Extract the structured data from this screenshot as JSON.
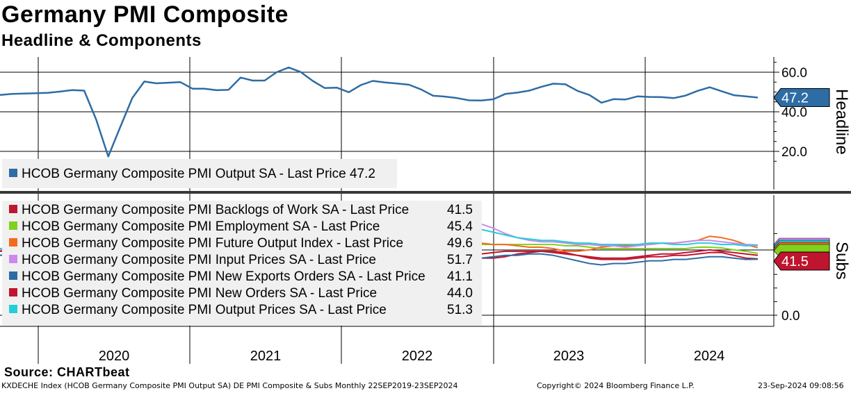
{
  "header": {
    "title": "Germany PMI Composite",
    "subtitle": "Headline & Components"
  },
  "footer": {
    "source": "Source: CHARTbeat",
    "ticker_line": "KXDECHE Index (HCOB Germany Composite PMI Output SA) DE PMI Composite & Subs  Monthly 22SEP2019-23SEP2024",
    "copyright": "Copyright© 2024 Bloomberg Finance L.P.",
    "timestamp": "23-Sep-2024 09:08:56"
  },
  "colors": {
    "headline": "#2e6ca4",
    "backlogs": "#c0152f",
    "employment": "#7fd11b",
    "future_output": "#f36c1c",
    "input_prices": "#cc88ee",
    "new_exports": "#2e6ca4",
    "new_orders": "#c0152f",
    "output_prices": "#22cfd8"
  },
  "chart_data": [
    {
      "type": "line",
      "panel": "top",
      "axis_title": "Headline",
      "x_labels": [
        "2020",
        "2021",
        "2022",
        "2023",
        "2024"
      ],
      "y_ticks": [
        "60.0",
        "40.0",
        "20.0"
      ],
      "ylim": [
        10,
        67
      ],
      "last_value_label": "47.2",
      "legend": [
        {
          "label": "HCOB Germany Composite PMI Output SA - Last Price 47.2",
          "color_key": "headline"
        }
      ],
      "series": [
        {
          "name": "HCOB Germany Composite PMI Output SA",
          "color_key": "headline",
          "values": [
            48.5,
            49.0,
            49.2,
            49.4,
            49.6,
            50.2,
            51.0,
            50.7,
            36.0,
            17.4,
            32.3,
            47.0,
            55.3,
            54.4,
            54.7,
            55.0,
            51.7,
            51.7,
            50.9,
            51.1,
            57.3,
            55.8,
            55.8,
            60.0,
            62.4,
            60.1,
            55.6,
            52.0,
            52.2,
            49.9,
            53.5,
            55.6,
            54.8,
            54.3,
            53.7,
            51.3,
            48.1,
            47.7,
            46.9,
            45.8,
            45.7,
            46.3,
            49.0,
            49.7,
            50.7,
            52.6,
            54.2,
            53.9,
            50.6,
            48.5,
            44.6,
            46.4,
            46.2,
            47.8,
            47.5,
            47.4,
            46.9,
            48.2,
            50.6,
            52.4,
            50.4,
            48.4,
            47.8,
            47.2
          ]
        }
      ]
    },
    {
      "type": "line",
      "panel": "bottom",
      "axis_title": "Subs",
      "x_labels": [
        "2020",
        "2021",
        "2022",
        "2023",
        "2024"
      ],
      "y_ticks": [
        "0.0"
      ],
      "ylim": [
        -5,
        80
      ],
      "last_value_label": "41.5",
      "legend": [
        {
          "label": "HCOB Germany Composite PMI Backlogs of Work SA - Last Price",
          "value": "41.5",
          "color_key": "backlogs"
        },
        {
          "label": "HCOB Germany Composite PMI Employment SA - Last Price",
          "value": "45.4",
          "color_key": "employment"
        },
        {
          "label": "HCOB Germany Composite PMI Future Output Index - Last Price",
          "value": "49.6",
          "color_key": "future_output"
        },
        {
          "label": "HCOB Germany Composite PMI Input Prices SA - Last Price",
          "value": "51.7",
          "color_key": "input_prices"
        },
        {
          "label": "HCOB Germany Composite PMI New Exports Orders SA - Last Price",
          "value": "41.1",
          "color_key": "new_exports"
        },
        {
          "label": "HCOB Germany Composite PMI New Orders SA - Last Price",
          "value": "44.0",
          "color_key": "new_orders"
        },
        {
          "label": "HCOB Germany Composite PMI Output Prices SA - Last Price",
          "value": "51.3",
          "color_key": "output_prices"
        }
      ],
      "series": [
        {
          "name": "HCOB Germany Composite PMI Backlogs of Work SA",
          "color_key": "backlogs",
          "values": [
            44,
            45,
            45,
            46,
            46,
            45,
            43,
            38,
            30,
            22,
            30,
            38,
            45,
            44,
            45,
            45,
            44,
            45,
            46,
            47,
            52,
            54,
            56,
            58,
            60,
            58,
            56,
            54,
            52,
            50,
            48,
            47,
            46,
            46,
            45,
            45,
            44,
            43,
            42,
            42,
            42,
            42,
            43,
            45,
            46,
            47,
            47,
            46,
            44,
            42,
            41,
            41,
            41,
            42,
            43,
            43,
            44,
            44,
            45,
            46,
            46,
            44,
            42,
            41.5
          ]
        },
        {
          "name": "HCOB Germany Composite PMI Employment SA",
          "color_key": "employment",
          "values": [
            49,
            49.5,
            49.7,
            50,
            50.3,
            49.5,
            49,
            47,
            40,
            35,
            38,
            43,
            46,
            47,
            47,
            47.5,
            48,
            48.5,
            49,
            49.5,
            51,
            52,
            53,
            54,
            55,
            54,
            53,
            52,
            51,
            51,
            52,
            53,
            53,
            53,
            52,
            52,
            51,
            51,
            51,
            51,
            52,
            52,
            52,
            52,
            52,
            52,
            52,
            51,
            51,
            50,
            49,
            49,
            49,
            49,
            49,
            49,
            49,
            49,
            50,
            50,
            49.5,
            48,
            47,
            45.4
          ]
        },
        {
          "name": "HCOB Germany Composite PMI Future Output Index",
          "color_key": "future_output",
          "values": [
            47,
            47,
            48,
            47,
            47,
            45,
            42,
            36,
            26,
            24,
            34,
            44,
            50,
            54,
            55,
            55,
            52,
            54,
            58,
            60,
            62,
            63,
            62,
            60,
            58,
            55,
            52,
            48,
            46,
            48,
            52,
            51,
            50,
            49,
            47,
            45,
            43,
            43,
            47,
            52,
            53,
            52,
            52,
            51,
            50,
            50,
            49,
            47,
            47,
            48,
            50,
            51,
            51,
            52,
            52,
            53,
            53,
            54,
            55,
            58,
            57,
            55,
            52,
            49.6
          ]
        },
        {
          "name": "HCOB Germany Composite PMI Input Prices SA",
          "color_key": "input_prices",
          "values": [
            48,
            48,
            49,
            49,
            50,
            50,
            49,
            47,
            44,
            42,
            44,
            46,
            47,
            48,
            48,
            49,
            50,
            51,
            52,
            54,
            56,
            58,
            61,
            64,
            68,
            70,
            71,
            72,
            73,
            72,
            72,
            73,
            74,
            75,
            76,
            75,
            74,
            73,
            72,
            71,
            67,
            64,
            60,
            57,
            55,
            54,
            54,
            53,
            52,
            52,
            51,
            51,
            50,
            51,
            52,
            53,
            53,
            54,
            55,
            55,
            54,
            53,
            52,
            51.7
          ]
        },
        {
          "name": "HCOB Germany Composite PMI New Exports Orders SA",
          "color_key": "new_exports",
          "values": [
            44,
            45,
            45,
            46,
            46,
            45,
            43,
            36,
            25,
            19,
            26,
            36,
            44,
            45,
            46,
            47,
            46,
            47,
            48,
            50,
            54,
            55,
            56,
            58,
            58,
            57,
            55,
            53,
            51,
            49,
            48,
            47,
            46,
            45,
            44,
            44,
            43,
            42,
            41,
            41,
            42,
            43,
            44,
            44,
            45,
            45,
            44,
            42,
            40,
            38,
            37,
            38,
            38,
            39,
            40,
            40,
            41,
            41,
            42,
            43,
            43,
            42,
            41,
            41.1
          ]
        },
        {
          "name": "HCOB Germany Composite PMI New Orders SA",
          "color_key": "new_orders",
          "values": [
            47,
            48,
            48,
            48,
            49,
            49,
            50,
            45,
            30,
            18,
            25,
            40,
            50,
            52,
            53,
            53,
            52,
            53,
            55,
            57,
            59,
            60,
            60,
            59,
            57,
            54,
            52,
            50,
            49,
            48,
            48,
            48,
            47,
            46,
            45,
            44,
            43,
            43,
            43,
            44,
            45,
            46,
            47,
            47,
            47,
            47,
            46,
            45,
            44,
            43,
            42,
            42,
            42,
            43,
            44,
            45,
            45,
            46,
            47,
            48,
            47,
            46,
            45,
            44.0
          ]
        },
        {
          "name": "HCOB Germany Composite PMI Output Prices SA",
          "color_key": "output_prices",
          "values": [
            49,
            49,
            50,
            50,
            50,
            50,
            49,
            47,
            45,
            44,
            45,
            46,
            47,
            47,
            48,
            48,
            49,
            50,
            51,
            52,
            53,
            55,
            57,
            59,
            61,
            62,
            63,
            64,
            65,
            66,
            66,
            67,
            68,
            69,
            70,
            69,
            68,
            67,
            66,
            65,
            63,
            61,
            59,
            57,
            56,
            55,
            55,
            54,
            53,
            53,
            52,
            52,
            52,
            52,
            53,
            53,
            52,
            52,
            53,
            53,
            52,
            52,
            51,
            51.3
          ]
        }
      ]
    }
  ]
}
